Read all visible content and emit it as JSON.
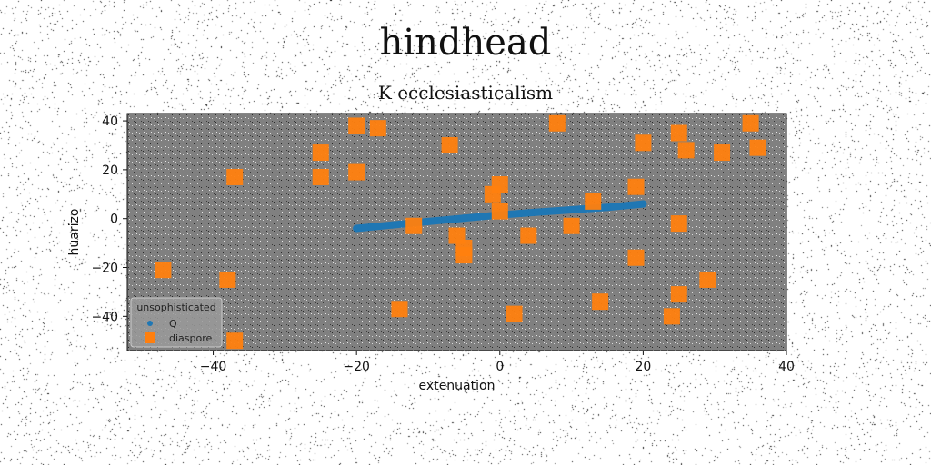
{
  "chart_data": {
    "type": "scatter",
    "title": "hindhead",
    "subtitle": "K ecclesiasticalism",
    "xlabel": "extenuation",
    "ylabel": "huarizo",
    "xlim": [
      -52,
      40
    ],
    "ylim": [
      -54,
      43
    ],
    "xticks": [
      -40,
      -20,
      0,
      20,
      40
    ],
    "yticks": [
      -40,
      -20,
      0,
      20,
      40
    ],
    "grid": false,
    "legend": {
      "title": "unsophisticated",
      "position": "bottom-left"
    },
    "series": [
      {
        "name": "Q",
        "color": "#1f77b4",
        "kind": "line",
        "points": [
          [
            -20,
            -4
          ],
          [
            -15,
            -2.6
          ],
          [
            -10,
            -1.2
          ],
          [
            -5,
            0.2
          ],
          [
            0,
            1.5
          ],
          [
            5,
            2.6
          ],
          [
            10,
            3.6
          ],
          [
            15,
            4.6
          ],
          [
            20,
            6
          ]
        ]
      },
      {
        "name": "diaspore",
        "color": "#ff7f0e",
        "kind": "scatter",
        "points": [
          [
            -47,
            -21
          ],
          [
            -38,
            -25
          ],
          [
            -37,
            17
          ],
          [
            -37,
            -50
          ],
          [
            -25,
            27
          ],
          [
            -25,
            17
          ],
          [
            -20,
            38
          ],
          [
            -20,
            19
          ],
          [
            -17,
            37
          ],
          [
            -14,
            -37
          ],
          [
            -12,
            -3
          ],
          [
            -7,
            30
          ],
          [
            -6,
            -7
          ],
          [
            -5,
            -12
          ],
          [
            -5,
            -15
          ],
          [
            -1,
            10
          ],
          [
            0,
            14
          ],
          [
            0,
            3
          ],
          [
            2,
            -39
          ],
          [
            4,
            -7
          ],
          [
            8,
            39
          ],
          [
            10,
            -3
          ],
          [
            13,
            7
          ],
          [
            14,
            -34
          ],
          [
            19,
            13
          ],
          [
            19,
            -16
          ],
          [
            20,
            31
          ],
          [
            24,
            -40
          ],
          [
            25,
            35
          ],
          [
            25,
            -2
          ],
          [
            25,
            -31
          ],
          [
            26,
            28
          ],
          [
            29,
            -25
          ],
          [
            31,
            27
          ],
          [
            35,
            39
          ],
          [
            36,
            29
          ]
        ]
      }
    ]
  }
}
